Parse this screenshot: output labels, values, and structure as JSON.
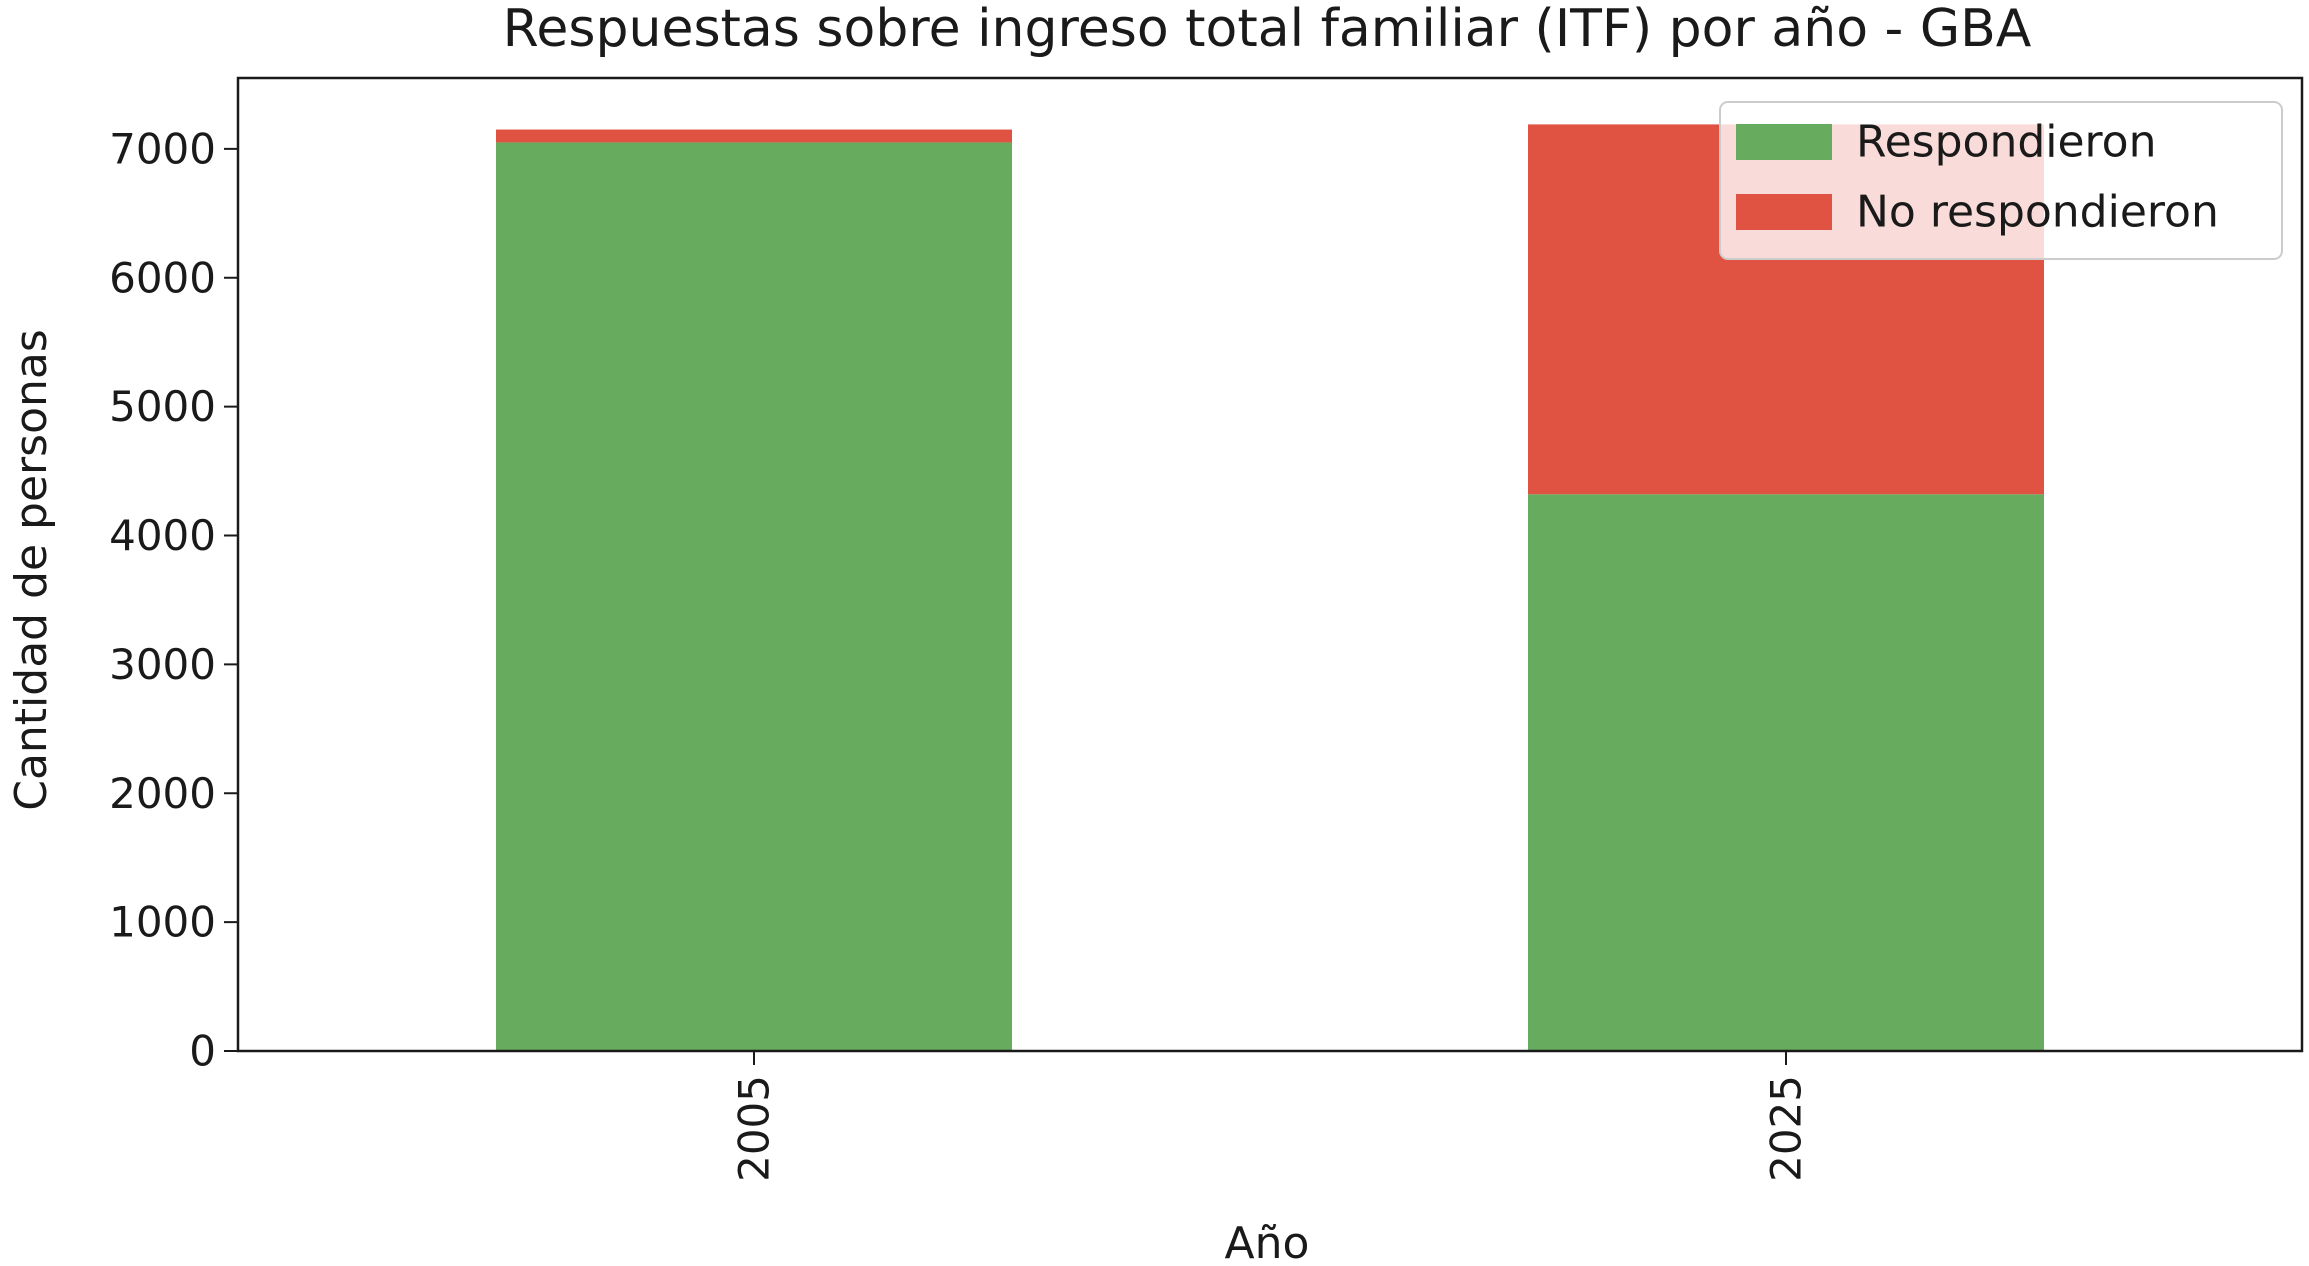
{
  "chart_data": {
    "type": "bar",
    "stacked": true,
    "title": "Respuestas sobre ingreso total familiar (ITF) por año - GBA",
    "xlabel": "Año",
    "ylabel": "Cantidad de personas",
    "categories": [
      "2005",
      "2025"
    ],
    "series": [
      {
        "name": "Respondieron",
        "color": "#67ab5e",
        "values": [
          7050,
          4320
        ]
      },
      {
        "name": "No respondieron",
        "color": "#e05241",
        "values": [
          100,
          2870
        ]
      }
    ],
    "ylim": [
      0,
      7550
    ],
    "yticks": [
      0,
      1000,
      2000,
      3000,
      4000,
      5000,
      6000,
      7000
    ],
    "grid": false,
    "legend_position": "upper right"
  }
}
